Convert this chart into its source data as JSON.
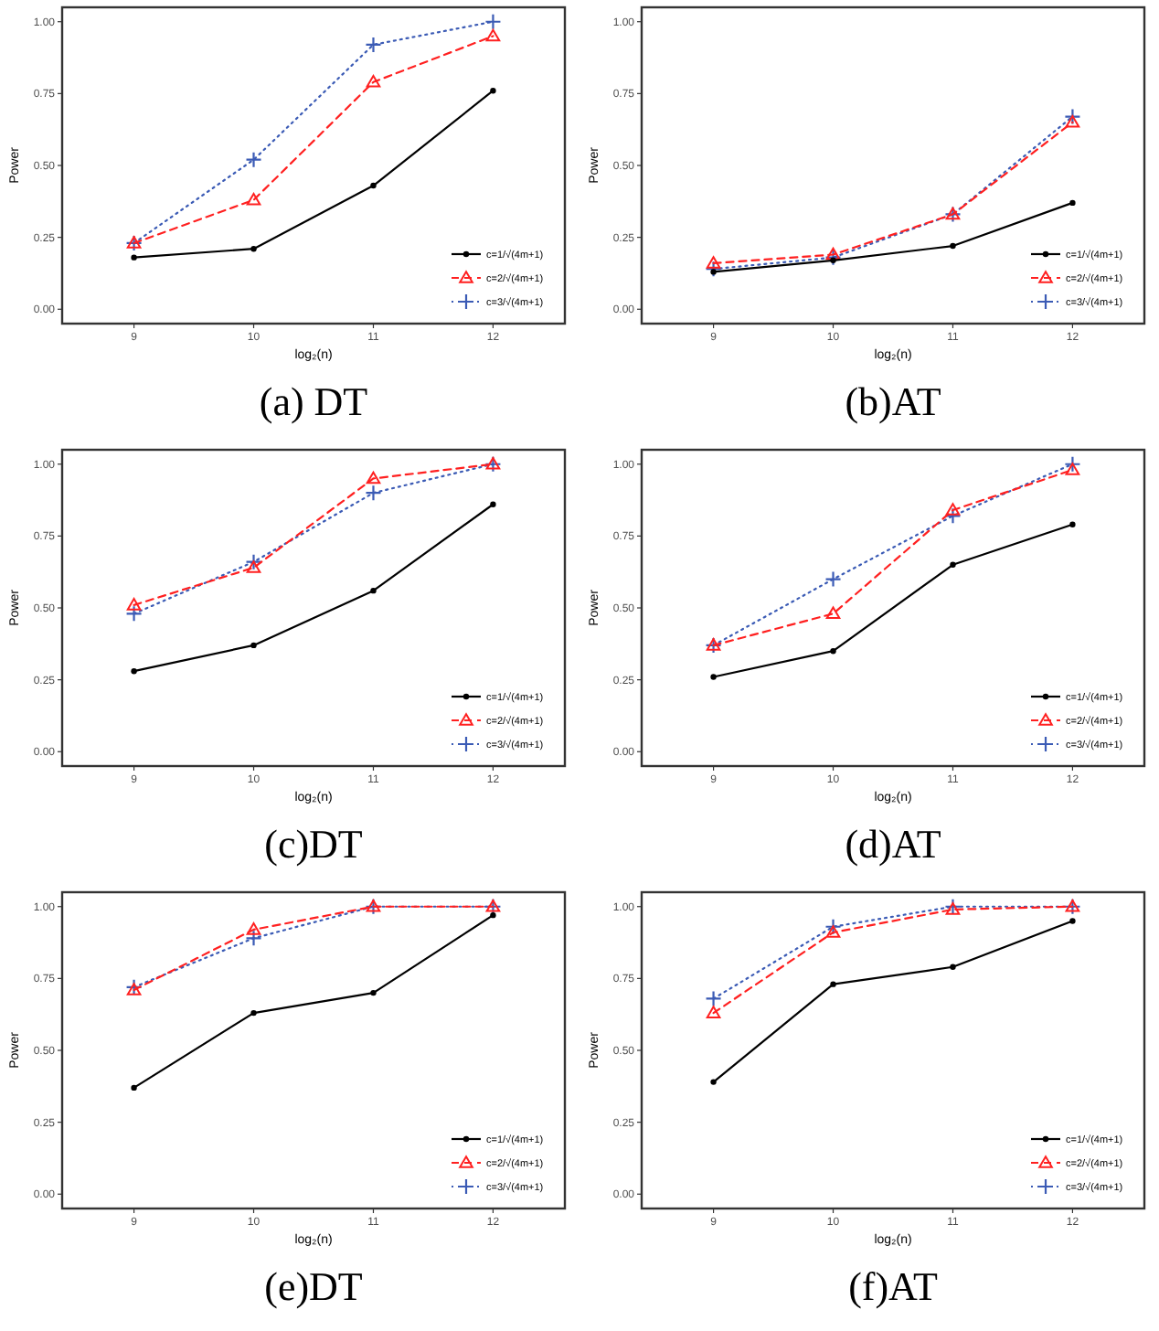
{
  "chart_data": [
    {
      "type": "line",
      "title": "(a) DT",
      "xlabel": "log₂(n)",
      "ylabel": "Power",
      "x": [
        9,
        10,
        11,
        12
      ],
      "xlim": [
        8.4,
        12.6
      ],
      "xticks": [
        9,
        10,
        11,
        12
      ],
      "ylim": [
        -0.05,
        1.05
      ],
      "yticks": [
        {
          "value": 0,
          "label": "0.00"
        },
        {
          "value": 0.25,
          "label": "0.25"
        },
        {
          "value": 0.5,
          "label": "0.50"
        },
        {
          "value": 0.75,
          "label": "0.75"
        },
        {
          "value": 1,
          "label": "1.00"
        }
      ],
      "grid": false,
      "legend": "bottom right",
      "series": [
        {
          "name": "c=1/√(4m+1)",
          "color": "#000000",
          "marker": "circle",
          "line_style": "solid",
          "values": [
            0.18,
            0.21,
            0.43,
            0.76
          ]
        },
        {
          "name": "c=2/√(4m+1)",
          "color": "#ff2020",
          "marker": "triangle",
          "line_style": "dashed",
          "values": [
            0.23,
            0.38,
            0.79,
            0.95
          ]
        },
        {
          "name": "c=3/√(4m+1)",
          "color": "#3b5bb5",
          "marker": "cross",
          "line_style": "dotted",
          "values": [
            0.23,
            0.52,
            0.92,
            1.0
          ]
        }
      ]
    },
    {
      "type": "line",
      "title": "(b)AT",
      "xlabel": "log₂(n)",
      "ylabel": "Power",
      "x": [
        9,
        10,
        11,
        12
      ],
      "xlim": [
        8.4,
        12.6
      ],
      "xticks": [
        9,
        10,
        11,
        12
      ],
      "ylim": [
        -0.05,
        1.05
      ],
      "yticks": [
        {
          "value": 0,
          "label": "0.00"
        },
        {
          "value": 0.25,
          "label": "0.25"
        },
        {
          "value": 0.5,
          "label": "0.50"
        },
        {
          "value": 0.75,
          "label": "0.75"
        },
        {
          "value": 1,
          "label": "1.00"
        }
      ],
      "grid": false,
      "legend": "bottom right",
      "series": [
        {
          "name": "c=1/√(4m+1)",
          "color": "#000000",
          "marker": "circle",
          "line_style": "solid",
          "values": [
            0.13,
            0.17,
            0.22,
            0.37
          ]
        },
        {
          "name": "c=2/√(4m+1)",
          "color": "#ff2020",
          "marker": "triangle",
          "line_style": "dashed",
          "values": [
            0.16,
            0.19,
            0.33,
            0.65
          ]
        },
        {
          "name": "c=3/√(4m+1)",
          "color": "#3b5bb5",
          "marker": "cross",
          "line_style": "dotted",
          "values": [
            0.14,
            0.18,
            0.33,
            0.67
          ]
        }
      ]
    },
    {
      "type": "line",
      "title": "(c)DT",
      "xlabel": "log₂(n)",
      "ylabel": "Power",
      "x": [
        9,
        10,
        11,
        12
      ],
      "xlim": [
        8.4,
        12.6
      ],
      "xticks": [
        9,
        10,
        11,
        12
      ],
      "ylim": [
        -0.05,
        1.05
      ],
      "yticks": [
        {
          "value": 0,
          "label": "0.00"
        },
        {
          "value": 0.25,
          "label": "0.25"
        },
        {
          "value": 0.5,
          "label": "0.50"
        },
        {
          "value": 0.75,
          "label": "0.75"
        },
        {
          "value": 1,
          "label": "1.00"
        }
      ],
      "grid": false,
      "legend": "bottom right",
      "series": [
        {
          "name": "c=1/√(4m+1)",
          "color": "#000000",
          "marker": "circle",
          "line_style": "solid",
          "values": [
            0.28,
            0.37,
            0.56,
            0.86
          ]
        },
        {
          "name": "c=2/√(4m+1)",
          "color": "#ff2020",
          "marker": "triangle",
          "line_style": "dashed",
          "values": [
            0.51,
            0.64,
            0.95,
            1.0
          ]
        },
        {
          "name": "c=3/√(4m+1)",
          "color": "#3b5bb5",
          "marker": "cross",
          "line_style": "dotted",
          "values": [
            0.48,
            0.66,
            0.9,
            1.0
          ]
        }
      ]
    },
    {
      "type": "line",
      "title": "(d)AT",
      "xlabel": "log₂(n)",
      "ylabel": "Power",
      "x": [
        9,
        10,
        11,
        12
      ],
      "xlim": [
        8.4,
        12.6
      ],
      "xticks": [
        9,
        10,
        11,
        12
      ],
      "ylim": [
        -0.05,
        1.05
      ],
      "yticks": [
        {
          "value": 0,
          "label": "0.00"
        },
        {
          "value": 0.25,
          "label": "0.25"
        },
        {
          "value": 0.5,
          "label": "0.50"
        },
        {
          "value": 0.75,
          "label": "0.75"
        },
        {
          "value": 1,
          "label": "1.00"
        }
      ],
      "grid": false,
      "legend": "bottom right",
      "series": [
        {
          "name": "c=1/√(4m+1)",
          "color": "#000000",
          "marker": "circle",
          "line_style": "solid",
          "values": [
            0.26,
            0.35,
            0.65,
            0.79
          ]
        },
        {
          "name": "c=2/√(4m+1)",
          "color": "#ff2020",
          "marker": "triangle",
          "line_style": "dashed",
          "values": [
            0.37,
            0.48,
            0.84,
            0.98
          ]
        },
        {
          "name": "c=3/√(4m+1)",
          "color": "#3b5bb5",
          "marker": "cross",
          "line_style": "dotted",
          "values": [
            0.37,
            0.6,
            0.82,
            1.0
          ]
        }
      ]
    },
    {
      "type": "line",
      "title": "(e)DT",
      "xlabel": "log₂(n)",
      "ylabel": "Power",
      "x": [
        9,
        10,
        11,
        12
      ],
      "xlim": [
        8.4,
        12.6
      ],
      "xticks": [
        9,
        10,
        11,
        12
      ],
      "ylim": [
        -0.05,
        1.05
      ],
      "yticks": [
        {
          "value": 0,
          "label": "0.00"
        },
        {
          "value": 0.25,
          "label": "0.25"
        },
        {
          "value": 0.5,
          "label": "0.50"
        },
        {
          "value": 0.75,
          "label": "0.75"
        },
        {
          "value": 1,
          "label": "1.00"
        }
      ],
      "grid": false,
      "legend": "bottom right",
      "series": [
        {
          "name": "c=1/√(4m+1)",
          "color": "#000000",
          "marker": "circle",
          "line_style": "solid",
          "values": [
            0.37,
            0.63,
            0.7,
            0.97
          ]
        },
        {
          "name": "c=2/√(4m+1)",
          "color": "#ff2020",
          "marker": "triangle",
          "line_style": "dashed",
          "values": [
            0.71,
            0.92,
            1.0,
            1.0
          ]
        },
        {
          "name": "c=3/√(4m+1)",
          "color": "#3b5bb5",
          "marker": "cross",
          "line_style": "dotted",
          "values": [
            0.72,
            0.89,
            1.0,
            1.0
          ]
        }
      ]
    },
    {
      "type": "line",
      "title": "(f)AT",
      "xlabel": "log₂(n)",
      "ylabel": "Power",
      "x": [
        9,
        10,
        11,
        12
      ],
      "xlim": [
        8.4,
        12.6
      ],
      "xticks": [
        9,
        10,
        11,
        12
      ],
      "ylim": [
        -0.05,
        1.05
      ],
      "yticks": [
        {
          "value": 0,
          "label": "0.00"
        },
        {
          "value": 0.25,
          "label": "0.25"
        },
        {
          "value": 0.5,
          "label": "0.50"
        },
        {
          "value": 0.75,
          "label": "0.75"
        },
        {
          "value": 1,
          "label": "1.00"
        }
      ],
      "grid": false,
      "legend": "bottom right",
      "series": [
        {
          "name": "c=1/√(4m+1)",
          "color": "#000000",
          "marker": "circle",
          "line_style": "solid",
          "values": [
            0.39,
            0.73,
            0.79,
            0.95
          ]
        },
        {
          "name": "c=2/√(4m+1)",
          "color": "#ff2020",
          "marker": "triangle",
          "line_style": "dashed",
          "values": [
            0.63,
            0.91,
            0.99,
            1.0
          ]
        },
        {
          "name": "c=3/√(4m+1)",
          "color": "#3b5bb5",
          "marker": "cross",
          "line_style": "dotted",
          "values": [
            0.68,
            0.93,
            1.0,
            1.0
          ]
        }
      ]
    }
  ]
}
